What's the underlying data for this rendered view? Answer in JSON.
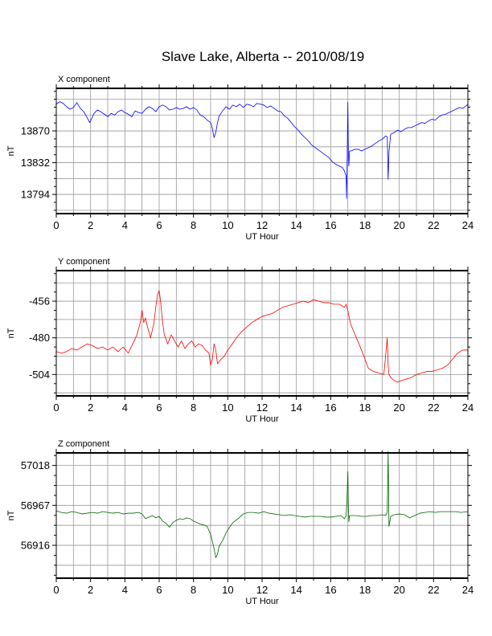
{
  "title": "Slave Lake, Alberta -- 2010/08/19",
  "chart_data": [
    {
      "type": "line",
      "title": "X component",
      "xlabel": "UT Hour",
      "ylabel": "nT",
      "xlim": [
        0,
        24
      ],
      "ylim": [
        13771,
        13921
      ],
      "xticks": [
        0,
        2,
        4,
        6,
        8,
        10,
        12,
        14,
        16,
        18,
        20,
        22,
        24
      ],
      "yticks": [
        13794,
        13832,
        13870
      ],
      "grid": true,
      "color": "#0000ff",
      "series": [
        {
          "x": [
            0,
            0.2,
            0.4,
            0.6,
            0.8,
            1.0,
            1.2,
            1.4,
            1.6,
            1.8,
            1.95,
            2.05,
            2.2,
            2.4,
            2.6,
            2.8,
            3.0,
            3.2,
            3.4,
            3.6,
            3.8,
            4.0,
            4.2,
            4.4,
            4.6,
            4.8,
            5.0,
            5.2,
            5.4,
            5.6,
            5.8,
            6.0,
            6.2,
            6.4,
            6.6,
            6.8,
            7.0,
            7.2,
            7.4,
            7.6,
            7.8,
            8.0,
            8.2,
            8.4,
            8.6,
            8.8,
            9.0,
            9.1,
            9.2,
            9.3,
            9.4,
            9.5,
            9.7,
            9.9,
            10.1,
            10.3,
            10.5,
            10.7,
            10.9,
            11.1,
            11.3,
            11.5,
            11.7,
            11.9,
            12.1,
            12.3,
            12.5,
            12.7,
            12.9,
            13.1,
            13.3,
            13.5,
            13.7,
            13.9,
            14.1,
            14.3,
            14.5,
            14.7,
            14.9,
            15.1,
            15.3,
            15.5,
            15.7,
            15.9,
            16.1,
            16.3,
            16.5,
            16.7,
            16.8,
            16.9,
            16.93,
            16.96,
            17.0,
            17.03,
            17.06,
            17.1,
            17.2,
            17.4,
            17.6,
            17.8,
            18.0,
            18.2,
            18.4,
            18.6,
            18.8,
            19.0,
            19.2,
            19.3,
            19.35,
            19.4,
            19.5,
            19.7,
            19.9,
            20.1,
            20.3,
            20.5,
            20.7,
            20.9,
            21.1,
            21.3,
            21.5,
            21.7,
            21.9,
            22.1,
            22.3,
            22.5,
            22.7,
            22.9,
            23.1,
            23.3,
            23.5,
            23.7,
            23.9,
            24.0
          ],
          "values": [
            13902,
            13905,
            13903,
            13899,
            13896,
            13898,
            13904,
            13897,
            13893,
            13886,
            13880,
            13884,
            13891,
            13895,
            13893,
            13890,
            13887,
            13891,
            13889,
            13893,
            13895,
            13892,
            13890,
            13887,
            13894,
            13892,
            13891,
            13896,
            13899,
            13897,
            13893,
            13899,
            13901,
            13899,
            13895,
            13896,
            13898,
            13896,
            13897,
            13899,
            13896,
            13898,
            13895,
            13889,
            13887,
            13883,
            13880,
            13873,
            13862,
            13868,
            13880,
            13888,
            13894,
            13899,
            13896,
            13901,
            13899,
            13902,
            13898,
            13902,
            13901,
            13899,
            13903,
            13902,
            13901,
            13898,
            13900,
            13897,
            13894,
            13893,
            13888,
            13885,
            13880,
            13875,
            13871,
            13866,
            13862,
            13858,
            13853,
            13850,
            13847,
            13844,
            13841,
            13838,
            13833,
            13830,
            13828,
            13826,
            13822,
            13816,
            13789,
            13832,
            13904,
            13845,
            13828,
            13846,
            13846,
            13848,
            13848,
            13846,
            13848,
            13850,
            13852,
            13855,
            13858,
            13860,
            13864,
            13863,
            13812,
            13845,
            13866,
            13868,
            13871,
            13869,
            13872,
            13874,
            13874,
            13876,
            13878,
            13880,
            13879,
            13882,
            13884,
            13883,
            13887,
            13889,
            13890,
            13892,
            13894,
            13896,
            13898,
            13897,
            13900,
            13902
          ]
        }
      ]
    },
    {
      "type": "line",
      "title": "Y component",
      "xlabel": "UT Hour",
      "ylabel": "nT",
      "xlim": [
        0,
        24
      ],
      "ylim": [
        -518,
        -436
      ],
      "xticks": [
        0,
        2,
        4,
        6,
        8,
        10,
        12,
        14,
        16,
        18,
        20,
        22,
        24
      ],
      "yticks": [
        -504,
        -480,
        -456
      ],
      "grid": true,
      "color": "#ff0000",
      "series": [
        {
          "x": [
            0,
            0.3,
            0.6,
            0.9,
            1.2,
            1.5,
            1.8,
            2.1,
            2.4,
            2.7,
            3.0,
            3.3,
            3.6,
            3.9,
            4.2,
            4.5,
            4.7,
            4.9,
            5.0,
            5.1,
            5.2,
            5.3,
            5.5,
            5.6,
            5.7,
            5.8,
            5.9,
            6.0,
            6.1,
            6.2,
            6.3,
            6.5,
            6.7,
            6.9,
            7.1,
            7.3,
            7.5,
            7.7,
            7.9,
            8.1,
            8.3,
            8.5,
            8.7,
            8.9,
            9.0,
            9.1,
            9.2,
            9.3,
            9.4,
            9.6,
            9.8,
            10.0,
            10.2,
            10.5,
            10.8,
            11.1,
            11.4,
            11.7,
            12.0,
            12.3,
            12.6,
            12.9,
            13.2,
            13.5,
            13.8,
            14.1,
            14.4,
            14.7,
            15.0,
            15.3,
            15.6,
            15.9,
            16.2,
            16.5,
            16.8,
            16.9,
            17.0,
            17.1,
            17.2,
            17.5,
            17.8,
            18.0,
            18.2,
            18.5,
            18.8,
            19.1,
            19.3,
            19.35,
            19.4,
            19.5,
            19.7,
            19.9,
            20.1,
            20.4,
            20.7,
            21.0,
            21.3,
            21.6,
            21.9,
            22.2,
            22.5,
            22.8,
            23.1,
            23.4,
            23.7,
            24.0
          ],
          "values": [
            -489,
            -490,
            -489,
            -487,
            -488,
            -486,
            -484,
            -485,
            -487,
            -486,
            -488,
            -486,
            -489,
            -486,
            -490,
            -483,
            -478,
            -470,
            -462,
            -470,
            -467,
            -472,
            -480,
            -475,
            -470,
            -460,
            -452,
            -449,
            -458,
            -470,
            -478,
            -484,
            -478,
            -482,
            -486,
            -482,
            -487,
            -484,
            -482,
            -486,
            -484,
            -485,
            -488,
            -490,
            -498,
            -494,
            -484,
            -488,
            -497,
            -494,
            -492,
            -488,
            -485,
            -480,
            -476,
            -473,
            -470,
            -468,
            -466,
            -465,
            -464,
            -462,
            -460,
            -459,
            -458,
            -457,
            -456,
            -457,
            -455,
            -456,
            -457,
            -457,
            -458,
            -458,
            -460,
            -458,
            -462,
            -468,
            -472,
            -480,
            -488,
            -494,
            -500,
            -502,
            -503,
            -504,
            -480,
            -498,
            -504,
            -506,
            -508,
            -509,
            -508,
            -507,
            -506,
            -504,
            -503,
            -502,
            -502,
            -501,
            -500,
            -498,
            -494,
            -490,
            -488,
            -488
          ]
        }
      ]
    },
    {
      "type": "line",
      "title": "Z component",
      "xlabel": "UT Hour",
      "ylabel": "nT",
      "xlim": [
        0,
        24
      ],
      "ylim": [
        56874,
        57034
      ],
      "xticks": [
        0,
        2,
        4,
        6,
        8,
        10,
        12,
        14,
        16,
        18,
        20,
        22,
        24
      ],
      "yticks": [
        56916,
        56967,
        57018
      ],
      "grid": true,
      "color": "#006400",
      "series": [
        {
          "x": [
            0,
            0.3,
            0.6,
            0.9,
            1.2,
            1.5,
            1.8,
            2.1,
            2.4,
            2.7,
            3.0,
            3.3,
            3.6,
            3.9,
            4.2,
            4.5,
            4.8,
            5.0,
            5.2,
            5.4,
            5.6,
            5.8,
            6.0,
            6.2,
            6.4,
            6.6,
            6.8,
            7.0,
            7.2,
            7.4,
            7.6,
            7.8,
            8.0,
            8.2,
            8.4,
            8.6,
            8.8,
            9.0,
            9.2,
            9.3,
            9.4,
            9.5,
            9.7,
            9.9,
            10.1,
            10.3,
            10.6,
            10.9,
            11.2,
            11.5,
            11.8,
            12.1,
            12.4,
            12.7,
            13.0,
            13.3,
            13.6,
            13.9,
            14.2,
            14.5,
            14.8,
            15.1,
            15.4,
            15.7,
            16.0,
            16.3,
            16.6,
            16.8,
            16.9,
            16.95,
            17.0,
            17.03,
            17.06,
            17.1,
            17.2,
            17.5,
            17.8,
            18.1,
            18.4,
            18.7,
            19.0,
            19.2,
            19.3,
            19.35,
            19.4,
            19.5,
            19.7,
            20.0,
            20.3,
            20.6,
            20.9,
            21.2,
            21.5,
            21.8,
            22.1,
            22.4,
            22.7,
            23.0,
            23.3,
            23.6,
            24.0
          ],
          "values": [
            56960,
            56958,
            56957,
            56959,
            56958,
            56956,
            56957,
            56958,
            56957,
            56959,
            56958,
            56957,
            56958,
            56956,
            56957,
            56957,
            56958,
            56956,
            56950,
            56952,
            56954,
            56951,
            56953,
            56947,
            56944,
            56939,
            56945,
            56948,
            56950,
            56949,
            56951,
            56950,
            56947,
            56945,
            56943,
            56942,
            56940,
            56930,
            56912,
            56900,
            56905,
            56915,
            56922,
            56932,
            56939,
            56945,
            56950,
            56956,
            56958,
            56958,
            56957,
            56959,
            56957,
            56956,
            56955,
            56954,
            56955,
            56954,
            56953,
            56952,
            56953,
            56953,
            56953,
            56952,
            56952,
            56953,
            56954,
            56950,
            56954,
            56975,
            57010,
            56968,
            56946,
            56954,
            56954,
            56954,
            56953,
            56953,
            56954,
            56954,
            56955,
            56954,
            56958,
            57036,
            56940,
            56953,
            56955,
            56956,
            56955,
            56951,
            56954,
            56957,
            56958,
            56959,
            56958,
            56959,
            56959,
            56959,
            56959,
            56958,
            56959
          ]
        }
      ]
    }
  ]
}
